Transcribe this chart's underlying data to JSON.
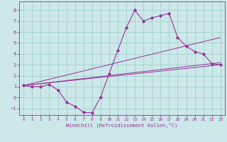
{
  "xlabel": "Windchill (Refroidissement éolien,°C)",
  "background_color": "#cce8e8",
  "line_color": "#993399",
  "grid_color": "#99cccc",
  "xlim": [
    -0.5,
    23.5
  ],
  "ylim": [
    -1.6,
    8.8
  ],
  "xticks": [
    0,
    1,
    2,
    3,
    4,
    5,
    6,
    7,
    8,
    9,
    10,
    11,
    12,
    13,
    14,
    15,
    16,
    17,
    18,
    19,
    20,
    21,
    22,
    23
  ],
  "yticks": [
    -1,
    0,
    1,
    2,
    3,
    4,
    5,
    6,
    7,
    8
  ],
  "main_line": {
    "x": [
      0,
      1,
      2,
      3,
      4,
      5,
      6,
      7,
      8,
      9,
      10,
      11,
      12,
      13,
      14,
      15,
      16,
      17,
      18,
      19,
      20,
      21,
      22,
      23
    ],
    "y": [
      1.1,
      1.0,
      1.0,
      1.2,
      0.7,
      -0.4,
      -0.8,
      -1.35,
      -1.4,
      0.05,
      2.2,
      4.3,
      6.4,
      8.0,
      7.0,
      7.3,
      7.5,
      7.7,
      5.5,
      4.7,
      4.2,
      4.0,
      3.1,
      3.0
    ]
  },
  "trend_lines": [
    {
      "x": [
        0,
        23
      ],
      "y": [
        1.1,
        3.0
      ]
    },
    {
      "x": [
        0,
        23
      ],
      "y": [
        1.1,
        3.2
      ]
    },
    {
      "x": [
        0,
        23
      ],
      "y": [
        1.1,
        5.5
      ]
    }
  ]
}
